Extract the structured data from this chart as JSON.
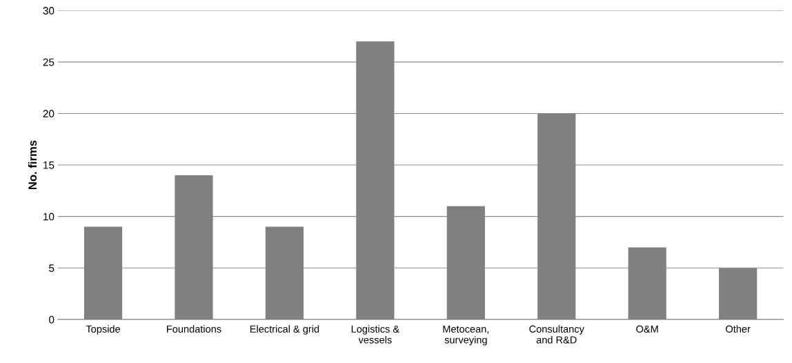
{
  "chart_data": {
    "type": "bar",
    "ylabel": "No. firms",
    "categories": [
      "Topside",
      "Foundations",
      "Electrical & grid",
      "Logistics &\nvessels",
      "Metocean,\nsurveying",
      "Consultancy\nand R&D",
      "O&M",
      "Other"
    ],
    "values": [
      9,
      14,
      9,
      27,
      11,
      20,
      7,
      5
    ],
    "color": "#808080",
    "ylim": [
      0,
      30
    ],
    "yticks": [
      0,
      5,
      10,
      15,
      20,
      25,
      30
    ],
    "grid": "y",
    "legend": false
  }
}
